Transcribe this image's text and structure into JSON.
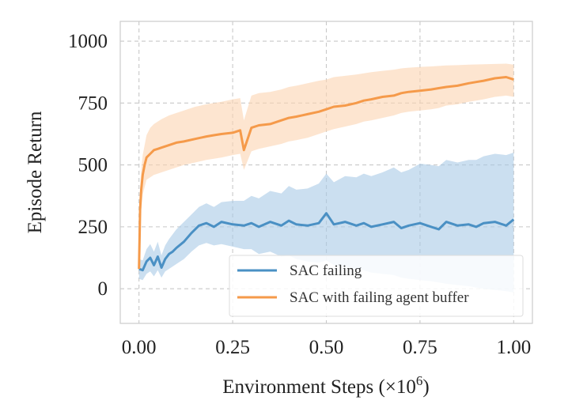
{
  "chart_data": {
    "type": "line",
    "xlabel": "Environment Steps (×10",
    "xlabel_exponent": "6",
    "xlabel_close": ")",
    "ylabel": "Episode Return",
    "xlim": [
      -0.05,
      1.05
    ],
    "ylim": [
      -140,
      1080
    ],
    "xticks": [
      0.0,
      0.25,
      0.5,
      0.75,
      1.0
    ],
    "xtick_labels": [
      "0.00",
      "0.25",
      "0.50",
      "0.75",
      "1.00"
    ],
    "yticks": [
      0,
      250,
      500,
      750,
      1000
    ],
    "ytick_labels": [
      "0",
      "250",
      "500",
      "750",
      "1000"
    ],
    "grid": true,
    "legend_position": "lower-right",
    "series": [
      {
        "name": "SAC failing",
        "color": "#4a90c4",
        "band_color": "#a9c9e6",
        "x": [
          0.0,
          0.01,
          0.02,
          0.03,
          0.04,
          0.05,
          0.06,
          0.07,
          0.08,
          0.09,
          0.1,
          0.12,
          0.14,
          0.16,
          0.18,
          0.2,
          0.22,
          0.25,
          0.28,
          0.3,
          0.32,
          0.35,
          0.38,
          0.4,
          0.42,
          0.45,
          0.48,
          0.5,
          0.52,
          0.55,
          0.58,
          0.6,
          0.62,
          0.65,
          0.68,
          0.7,
          0.72,
          0.75,
          0.78,
          0.8,
          0.82,
          0.85,
          0.88,
          0.9,
          0.92,
          0.95,
          0.98,
          1.0
        ],
        "mean": [
          80,
          75,
          110,
          125,
          95,
          130,
          85,
          120,
          140,
          150,
          165,
          190,
          225,
          255,
          265,
          250,
          270,
          260,
          255,
          265,
          250,
          270,
          255,
          275,
          260,
          255,
          265,
          305,
          260,
          270,
          255,
          265,
          250,
          260,
          270,
          245,
          255,
          265,
          250,
          240,
          270,
          255,
          260,
          250,
          265,
          270,
          255,
          280
        ],
        "lower": [
          40,
          35,
          60,
          70,
          50,
          75,
          45,
          70,
          80,
          90,
          100,
          120,
          150,
          175,
          185,
          175,
          180,
          170,
          160,
          160,
          140,
          150,
          130,
          135,
          120,
          110,
          105,
          115,
          95,
          90,
          80,
          75,
          65,
          60,
          55,
          45,
          40,
          35,
          30,
          25,
          20,
          15,
          10,
          5,
          0,
          -5,
          -10,
          -15
        ],
        "upper": [
          120,
          115,
          160,
          180,
          150,
          190,
          135,
          175,
          200,
          220,
          240,
          270,
          300,
          330,
          345,
          330,
          350,
          355,
          355,
          375,
          365,
          395,
          385,
          415,
          400,
          405,
          425,
          465,
          430,
          455,
          450,
          465,
          455,
          470,
          490,
          470,
          480,
          505,
          500,
          495,
          520,
          510,
          520,
          520,
          535,
          545,
          540,
          550
        ]
      },
      {
        "name": "SAC with failing agent buffer",
        "color": "#f59a4a",
        "band_color": "#fbd3b0",
        "x": [
          0.0,
          0.003,
          0.006,
          0.01,
          0.015,
          0.02,
          0.03,
          0.04,
          0.05,
          0.06,
          0.08,
          0.1,
          0.12,
          0.15,
          0.18,
          0.2,
          0.22,
          0.25,
          0.27,
          0.28,
          0.3,
          0.32,
          0.35,
          0.38,
          0.4,
          0.42,
          0.45,
          0.48,
          0.5,
          0.52,
          0.55,
          0.58,
          0.6,
          0.62,
          0.65,
          0.68,
          0.7,
          0.72,
          0.75,
          0.78,
          0.8,
          0.82,
          0.85,
          0.88,
          0.9,
          0.92,
          0.95,
          0.98,
          1.0
        ],
        "mean": [
          80,
          320,
          400,
          460,
          500,
          530,
          545,
          560,
          565,
          570,
          580,
          590,
          595,
          605,
          615,
          620,
          625,
          630,
          640,
          560,
          650,
          660,
          665,
          680,
          690,
          695,
          705,
          715,
          725,
          735,
          740,
          750,
          760,
          765,
          775,
          780,
          790,
          795,
          800,
          805,
          810,
          815,
          820,
          830,
          835,
          840,
          850,
          855,
          845
        ],
        "lower": [
          60,
          250,
          320,
          380,
          410,
          440,
          450,
          460,
          465,
          470,
          480,
          490,
          500,
          510,
          520,
          525,
          530,
          540,
          545,
          480,
          555,
          565,
          575,
          585,
          595,
          600,
          610,
          625,
          635,
          645,
          655,
          665,
          675,
          680,
          690,
          700,
          710,
          715,
          720,
          725,
          730,
          740,
          745,
          755,
          760,
          765,
          775,
          780,
          775
        ],
        "upper": [
          100,
          400,
          480,
          540,
          580,
          620,
          650,
          665,
          675,
          685,
          700,
          710,
          720,
          735,
          745,
          750,
          755,
          765,
          770,
          680,
          780,
          790,
          795,
          805,
          815,
          820,
          830,
          840,
          845,
          855,
          860,
          865,
          870,
          875,
          880,
          885,
          890,
          893,
          896,
          898,
          900,
          902,
          903,
          905,
          906,
          907,
          908,
          909,
          905
        ]
      }
    ]
  }
}
